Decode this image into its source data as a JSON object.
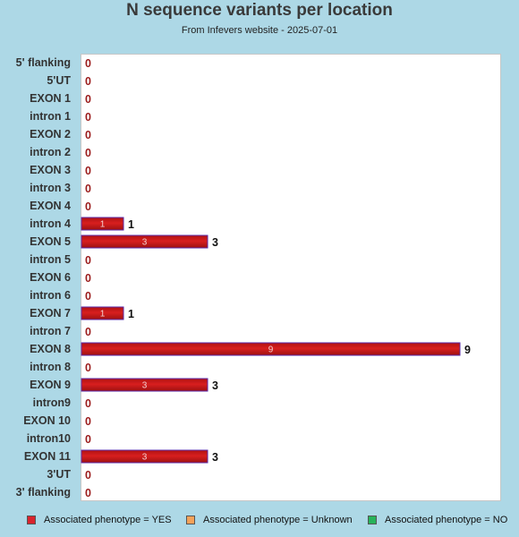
{
  "title": "N sequence variants per location",
  "subtitle": "From Infevers website - 2025-07-01",
  "colors": {
    "background": "#add8e6",
    "plot_background": "#ffffff",
    "bar_fill": "#d81f1f",
    "bar_edge": "#5a2aa8",
    "zero_label": "#9b1c1c",
    "legend_yes": "#d9232d",
    "legend_unknown": "#f4a259",
    "legend_no": "#27b35a"
  },
  "legend": [
    {
      "label": "Associated phenotype = YES",
      "color": "#d9232d"
    },
    {
      "label": "Associated phenotype = Unknown",
      "color": "#f4a259"
    },
    {
      "label": "Associated phenotype = NO",
      "color": "#27b35a"
    }
  ],
  "chart_data": {
    "type": "bar",
    "orientation": "horizontal",
    "categories": [
      "5' flanking",
      "5'UT",
      "EXON 1",
      "intron 1",
      "EXON 2",
      "intron 2",
      "EXON 3",
      "intron 3",
      "EXON 4",
      "intron 4",
      "EXON 5",
      "intron 5",
      "EXON 6",
      "intron 6",
      "EXON 7",
      "intron 7",
      "EXON 8",
      "intron 8",
      "EXON 9",
      "intron9",
      "EXON 10",
      "intron10",
      "EXON 11",
      "3'UT",
      "3' flanking"
    ],
    "values": [
      0,
      0,
      0,
      0,
      0,
      0,
      0,
      0,
      0,
      1,
      3,
      0,
      0,
      0,
      1,
      0,
      9,
      0,
      3,
      0,
      0,
      0,
      3,
      0,
      0
    ],
    "xlim": [
      0,
      9
    ],
    "grid": false,
    "legend_position": "bottom"
  }
}
